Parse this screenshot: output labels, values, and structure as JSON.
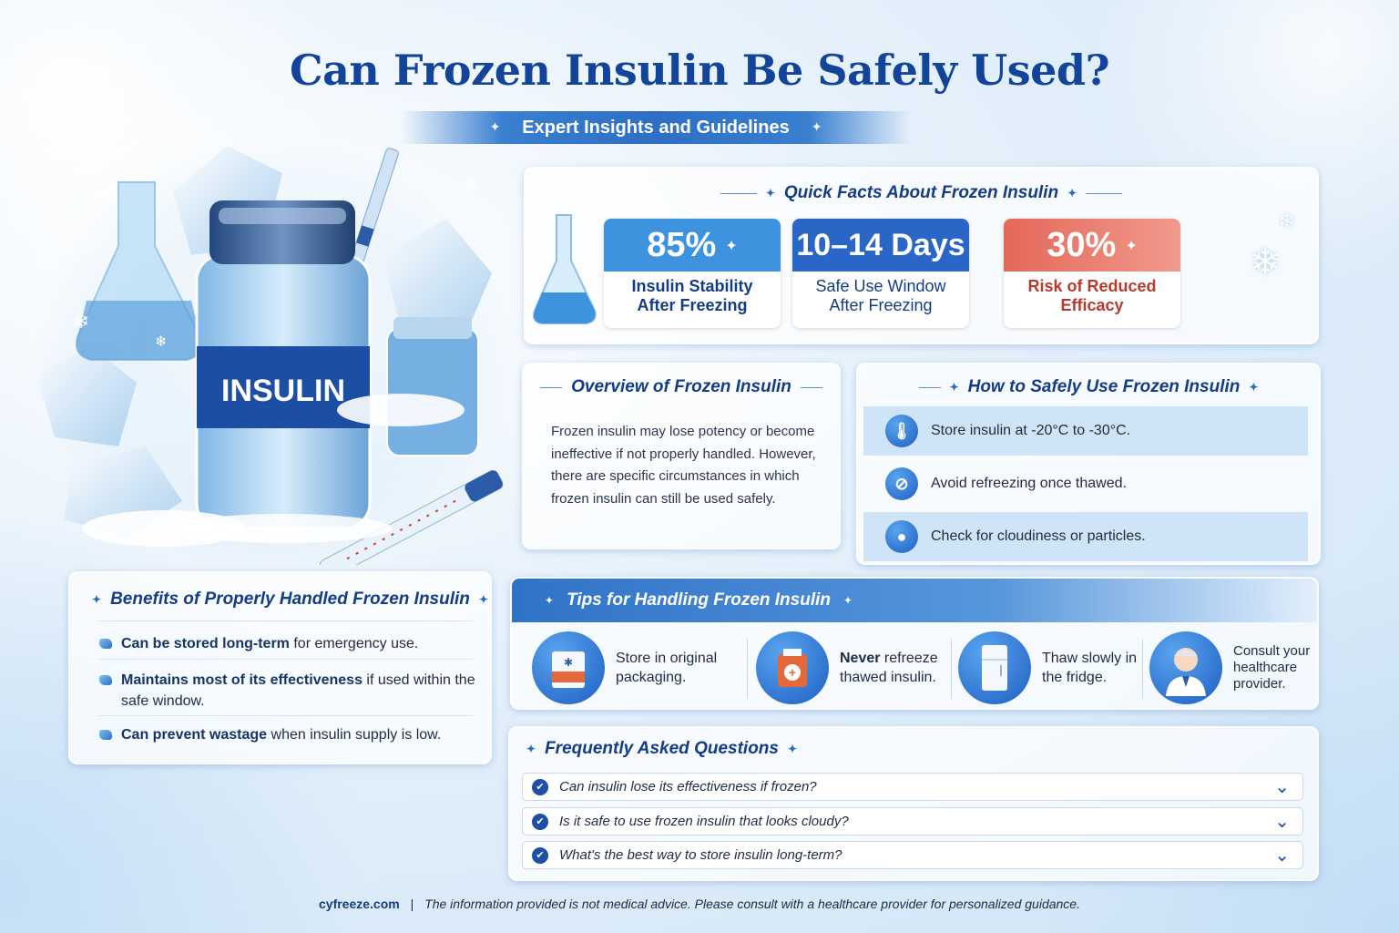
{
  "header": {
    "title": "Can Frozen Insulin Be Safely Used?",
    "subtitle": "Expert Insights and Guidelines"
  },
  "illustration": {
    "vial_label": "INSULIN"
  },
  "quick_facts": {
    "title": "Quick Facts About Frozen Insulin",
    "items": [
      {
        "value": "85%",
        "label": "Insulin Stability\nAfter Freezing",
        "color": "#3d93de"
      },
      {
        "value": "10–14 Days",
        "label": "Safe Use Window\nAfter Freezing",
        "color": "#2a66c6"
      },
      {
        "value": "30%",
        "label": "Risk of Reduced\nEfficacy",
        "color": "#e4685a"
      }
    ]
  },
  "overview": {
    "title": "Overview of Frozen Insulin",
    "text": "Frozen insulin may lose potency or become ineffective if not properly handled. However, there are specific circumstances in which frozen insulin can still be used safely."
  },
  "how_to": {
    "title": "How to Safely Use Frozen Insulin",
    "items": [
      {
        "icon": "thermometer-icon",
        "text": "Store insulin at -20°C to -30°C."
      },
      {
        "icon": "no-refreeze-icon",
        "text": "Avoid refreezing once thawed."
      },
      {
        "icon": "particles-icon",
        "text": "Check for cloudiness or particles."
      }
    ]
  },
  "benefits": {
    "title": "Benefits of Properly Handled Frozen Insulin",
    "items": [
      {
        "bold": "Can be stored long-term",
        "rest": " for emergency use."
      },
      {
        "bold": "Maintains most of its effectiveness",
        "rest": " if used within the safe window."
      },
      {
        "bold": "Can prevent wastage",
        "rest": " when insulin supply is low."
      }
    ]
  },
  "tips": {
    "title": "Tips for Handling Frozen Insulin",
    "items": [
      {
        "icon": "package-icon",
        "bold": "",
        "text": "Store in original packaging."
      },
      {
        "icon": "medical-box-icon",
        "bold": "Never",
        "text": " refreeze thawed insulin."
      },
      {
        "icon": "fridge-icon",
        "bold": "",
        "text": "Thaw slowly in the fridge."
      },
      {
        "icon": "doctor-icon",
        "bold": "",
        "text": "Consult your healthcare provider."
      }
    ]
  },
  "faq": {
    "title": "Frequently Asked Questions",
    "items": [
      "Can insulin lose its effectiveness if frozen?",
      "Is it safe to use frozen insulin that looks cloudy?",
      "What's the best way to store insulin long-term?"
    ]
  },
  "footer": {
    "site": "cyfreeze.com",
    "separator": "|",
    "disclaimer": "The information provided is not medical advice.  Please consult with a healthcare provider for personalized guidance."
  }
}
